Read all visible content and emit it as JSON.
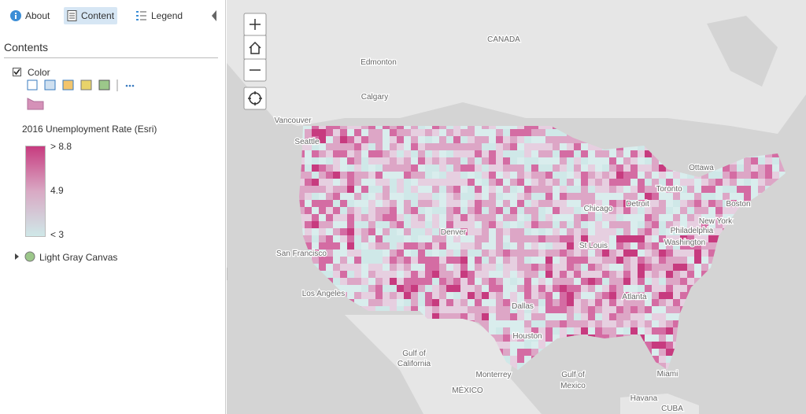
{
  "sidebar": {
    "tabs": [
      "About",
      "Content",
      "Legend"
    ],
    "heading": "Contents",
    "layers": [
      {
        "name": "Color"
      },
      {
        "name": "Light Gray Canvas"
      }
    ],
    "legend": {
      "title": "2016 Unemployment Rate (Esri)",
      "labels": [
        "> 8.8",
        "4.9",
        "< 3"
      ]
    }
  },
  "map": {
    "labels": [
      "CANADA",
      "Edmonton",
      "Calgary",
      "Vancouver",
      "Seattle",
      "Ottawa",
      "Toronto",
      "Boston",
      "New York",
      "Philadelphia",
      "Washington",
      "Chicago",
      "Detroit",
      "Denver",
      "San Francisco",
      "Los Angeles",
      "St Louis",
      "Dallas",
      "Houston",
      "Atlanta",
      "Miami",
      "Monterrey",
      "MÉXICO",
      "Havana",
      "CUBA",
      "Gulf of",
      "California",
      "Gulf of",
      "Mexico"
    ]
  }
}
